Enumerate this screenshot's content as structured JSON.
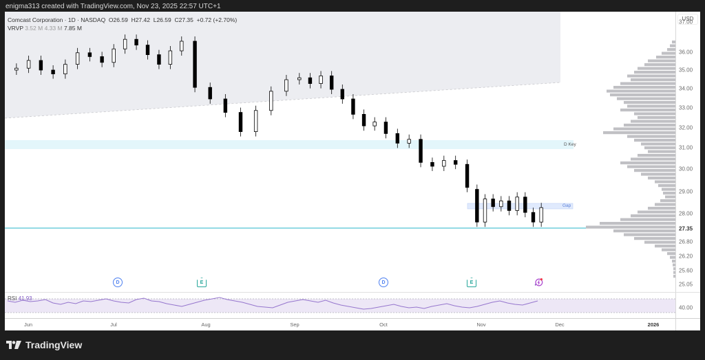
{
  "caption": "enigma313 created with TradingView.com, Nov 23, 2025 22:57 UTC+1",
  "legend": {
    "symbol": "Comcast Corporation · 1D · NASDAQ",
    "open_label": "O",
    "open": "26.59",
    "high_label": "H",
    "high": "27.42",
    "low_label": "L",
    "low": "26.59",
    "close_label": "C",
    "close": "27.35",
    "change": "+0.72 (+2.70%)",
    "vrvp_label": "VRVP",
    "vrvp_v1": "3.52 M",
    "vrvp_v2": "4.33 M",
    "vrvp_v3": "7.85 M"
  },
  "price_scale": {
    "unit": "USD",
    "labels": [
      "37.00",
      "36.00",
      "35.00",
      "34.00",
      "33.00",
      "32.00",
      "31.00",
      "30.00",
      "29.00",
      "28.00",
      "27.35",
      "26.80",
      "26.20",
      "25.60",
      "25.05"
    ],
    "current": "27.35"
  },
  "zones": {
    "d_key_label": "D Key",
    "gap_label": "Gap"
  },
  "rsi": {
    "label": "RSI",
    "value": "41.93",
    "scale_label": "40.00"
  },
  "time_axis": [
    "Jun",
    "Jul",
    "Aug",
    "Sep",
    "Oct",
    "Nov",
    "Dec",
    "2026"
  ],
  "events": [
    {
      "type": "D",
      "name": "dividend"
    },
    {
      "type": "E",
      "name": "earnings"
    },
    {
      "type": "D",
      "name": "dividend"
    },
    {
      "type": "E",
      "name": "earnings"
    },
    {
      "type": "S",
      "name": "upcoming-event"
    }
  ],
  "brand": "TradingView",
  "colors": {
    "up_candle": "#ffffff",
    "down_candle": "#000000",
    "current_price_line": "#26b5c8",
    "rsi_line": "#9575cd",
    "rsi_band": "#ede7f6",
    "volume_profile": "#c0c0c4",
    "d_key_zone": "#e3f6fb",
    "gap_zone": "#e0eafd",
    "upper_channel": "#ecedf1"
  },
  "chart_data": {
    "type": "candlestick",
    "title": "Comcast Corporation · 1D · NASDAQ",
    "xlabel": "",
    "ylabel": "USD",
    "ylim": [
      25.05,
      37.3
    ],
    "x_ticks": [
      "Jun",
      "Jul",
      "Aug",
      "Sep",
      "Oct",
      "Nov",
      "Dec",
      "2026"
    ],
    "y_ticks": [
      37,
      36,
      35,
      34,
      33,
      32,
      31,
      30,
      29,
      28,
      27.35,
      26.8,
      26.2,
      25.6,
      25.05
    ],
    "last_bar": {
      "open": 26.59,
      "high": 27.42,
      "low": 26.59,
      "close": 27.35,
      "change": 0.72,
      "change_pct": 2.7
    },
    "approx_closes_by_month": {
      "Jun": [
        34.6,
        35.0,
        34.5,
        34.3,
        34.8,
        35.4,
        35.2,
        34.9
      ],
      "Jul": [
        35.6,
        36.1,
        35.8,
        35.3,
        34.8,
        35.5,
        36.0
      ],
      "Aug": [
        33.6,
        33.0,
        32.3,
        31.3,
        32.4,
        33.4,
        34.0
      ],
      "Sep": [
        34.1,
        33.8,
        34.2,
        33.5,
        33.0,
        32.2,
        31.6,
        31.8
      ],
      "Oct": [
        31.2,
        30.7,
        30.9,
        29.7,
        29.5,
        29.8,
        29.6,
        28.4
      ],
      "Nov": [
        26.6,
        27.8,
        27.4,
        27.7,
        27.2,
        27.9,
        27.1,
        26.6,
        27.35
      ]
    },
    "annotations": [
      {
        "label": "D Key",
        "type": "zone",
        "price_range": [
          31.0,
          31.25
        ]
      },
      {
        "label": "Gap",
        "type": "zone",
        "price_range": [
          28.2,
          28.45
        ]
      },
      {
        "label": "Current price",
        "type": "hline",
        "value": 27.35
      }
    ],
    "indicators": [
      {
        "name": "VRVP",
        "values": [
          "3.52M",
          "4.33M",
          "7.85M"
        ],
        "poc_price": 27.35
      },
      {
        "name": "RSI",
        "value": 41.93,
        "bands": [
          30,
          70
        ],
        "visible_scale_label": 40.0
      }
    ],
    "grid": false,
    "legend_position": "top-left"
  }
}
